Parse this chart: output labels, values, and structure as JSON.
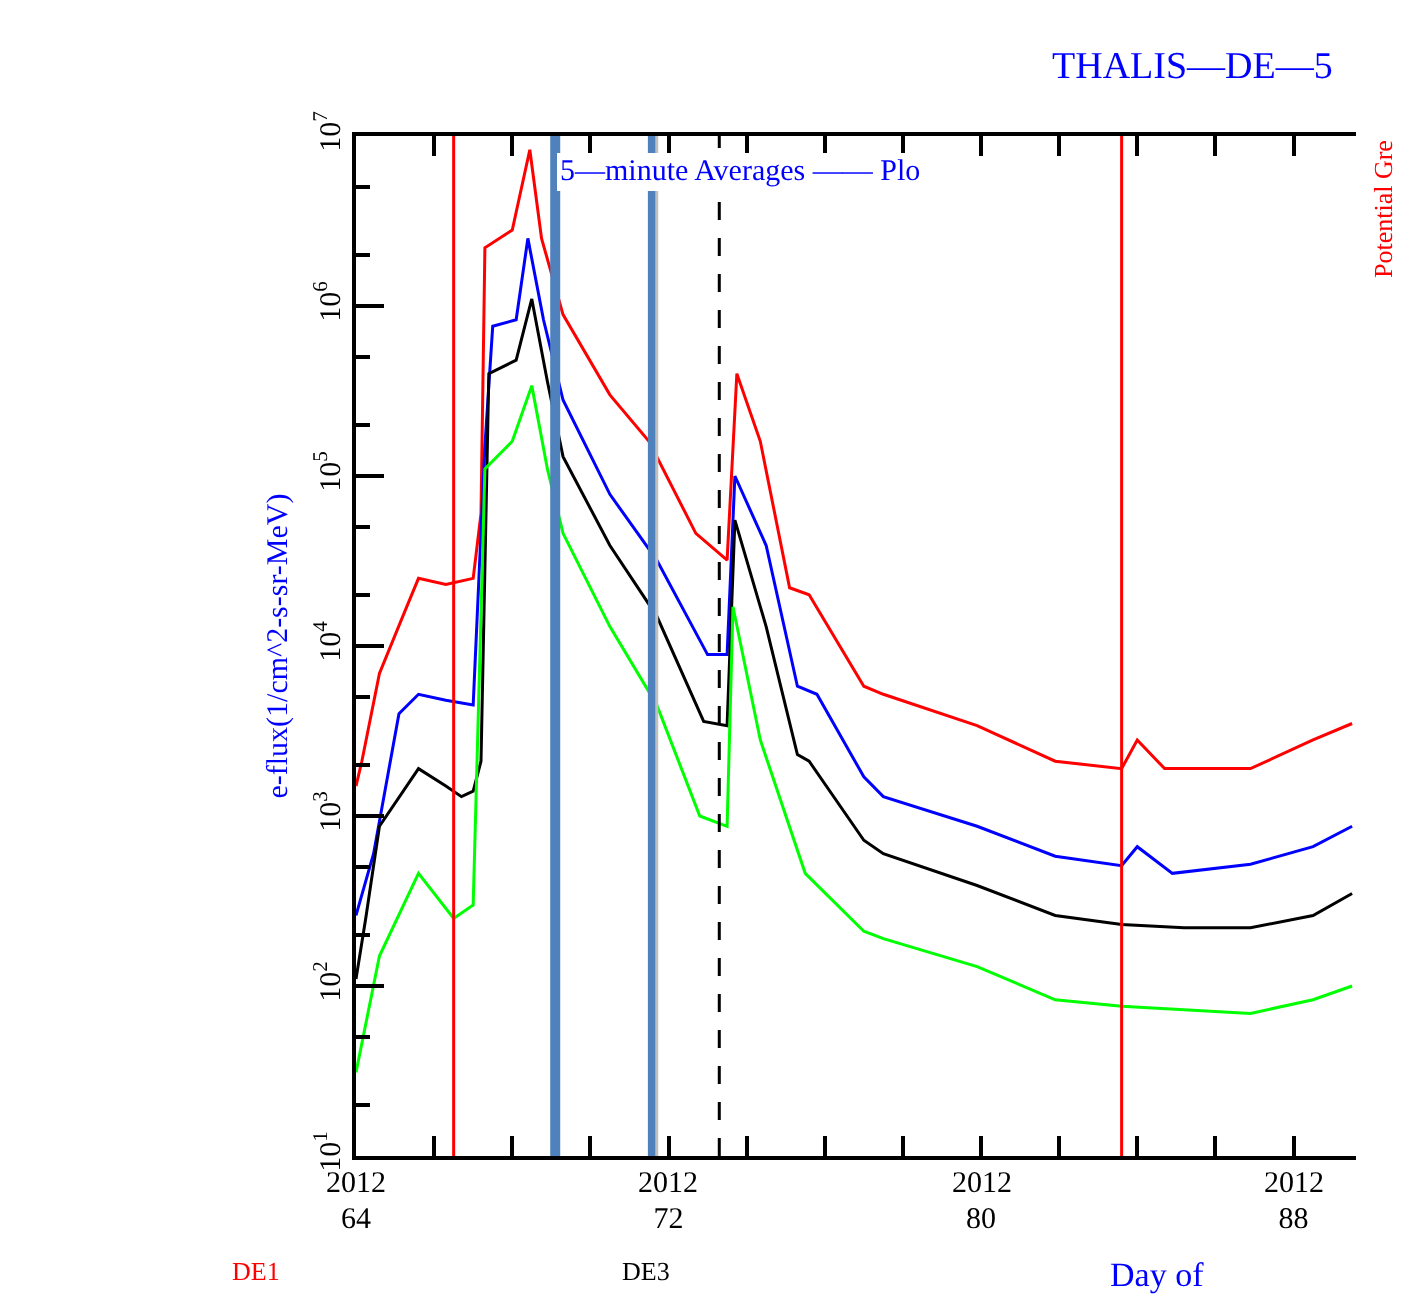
{
  "chart_data": {
    "type": "line",
    "title": "THALIS—DE—5",
    "subtitle": "5—minute Averages —— Plo",
    "xlabel": "Day of",
    "ylabel": "e-flux(1/cm^2-s-sr-MeV)",
    "annotations": [
      "DE1",
      "DE3",
      "Potential Gre",
      "2012",
      "2012",
      "2012",
      "2012"
    ],
    "log": "y",
    "marker": "none",
    "line_style": "solid",
    "xlim": [
      64,
      89.6
    ],
    "xticks": [
      64,
      {
        "value": 66,
        "label": null
      },
      {
        "value": 68,
        "label": null
      },
      {
        "value": 70,
        "label": null
      },
      72,
      {
        "value": 74,
        "label": null
      },
      {
        "value": 76,
        "label": null
      },
      {
        "value": 78,
        "label": null
      },
      80,
      {
        "value": 82,
        "label": null
      },
      {
        "value": 84,
        "label": null
      },
      {
        "value": 86,
        "label": null
      },
      88
    ],
    "ylim": [
      10,
      10000000
    ],
    "yticks": [
      {
        "value": 10,
        "label": "10$^{1}$"
      },
      {
        "value": 100,
        "label": "10$^{2}$"
      },
      {
        "value": 1000,
        "label": "10$^{3}$"
      },
      {
        "value": 10000,
        "label": "10$^{4}$"
      },
      {
        "value": 100000,
        "label": "10$^{5}$"
      },
      {
        "value": 1000000,
        "label": "10$^{6}$"
      },
      {
        "value": 10000000,
        "label": "10$^{7}$"
      }
    ],
    "ref_lines": [
      {
        "axis": "x",
        "value": 66.5,
        "color": "#ff0000",
        "line_style": "solid"
      },
      {
        "axis": "x",
        "value": 69.1,
        "color": "#4f81bd",
        "line_style": "solid"
      },
      {
        "axis": "x",
        "value": 71.6,
        "color": "#4f81bd",
        "line_style": "solid"
      },
      {
        "axis": "x",
        "value": 71.7,
        "color": "#c0c0c0",
        "line_style": "solid"
      },
      {
        "axis": "x",
        "value": 73.3,
        "color": "#000000",
        "line_style": "dashed"
      },
      {
        "axis": "x",
        "value": 83.6,
        "color": "#ff0000",
        "line_style": "solid"
      }
    ],
    "series": [
      {
        "color": "#ff0000",
        "x": [
          64.0,
          64.15,
          64.6,
          65.2,
          65.6,
          66.3,
          67.0,
          67.2,
          67.3,
          68.0,
          68.45,
          68.75,
          69.3,
          70.5,
          71.5,
          72.7,
          73.5,
          73.75,
          74.35,
          75.1,
          75.6,
          77.0,
          77.5,
          79.9,
          81.9,
          83.6,
          84.0,
          84.7,
          86.9,
          88.5,
          89.5
        ],
        "values": [
          1500,
          2100,
          6900,
          15000,
          25000,
          23000,
          25000,
          60000,
          2200000,
          2800000,
          8300000,
          2500000,
          890000,
          300000,
          160000,
          46000,
          32000,
          400000,
          160000,
          22000,
          20000,
          5800,
          5200,
          3400,
          2100,
          1900,
          2800,
          1900,
          1900,
          2800,
          3500
        ]
      },
      {
        "color": "#0000ff",
        "x": [
          64.0,
          64.45,
          65.1,
          65.6,
          66.3,
          67.0,
          67.3,
          67.5,
          68.1,
          68.4,
          68.8,
          69.3,
          70.5,
          71.7,
          73.0,
          73.5,
          73.7,
          74.5,
          75.3,
          75.8,
          77.0,
          77.5,
          79.9,
          81.9,
          83.6,
          84.0,
          84.9,
          86.9,
          88.5,
          89.5
        ],
        "values": [
          260,
          600,
          4000,
          5200,
          4800,
          4500,
          150000,
          760000,
          830000,
          2500000,
          830000,
          280000,
          78000,
          32000,
          8900,
          8900,
          100000,
          39000,
          5800,
          5200,
          1700,
          1300,
          870,
          580,
          510,
          660,
          460,
          520,
          660,
          870
        ]
      },
      {
        "color": "#000000",
        "x": [
          64.0,
          64.25,
          64.6,
          65.6,
          66.3,
          66.7,
          67.0,
          67.2,
          67.4,
          68.1,
          68.5,
          68.9,
          69.3,
          70.5,
          71.7,
          72.9,
          73.5,
          73.7,
          74.5,
          75.3,
          75.6,
          77.0,
          77.5,
          79.9,
          81.9,
          83.6,
          85.2,
          86.9,
          88.5,
          89.5
        ],
        "values": [
          110,
          250,
          870,
          1900,
          1500,
          1300,
          1400,
          2100,
          400000,
          480000,
          1100000,
          360000,
          130000,
          39000,
          15000,
          3600,
          3400,
          55000,
          13000,
          2300,
          2100,
          720,
          600,
          390,
          260,
          230,
          220,
          220,
          260,
          350
        ]
      },
      {
        "color": "#00ff00",
        "x": [
          64.0,
          64.6,
          65.6,
          66.5,
          67.0,
          67.3,
          68.0,
          68.5,
          68.9,
          69.3,
          70.5,
          71.7,
          72.8,
          73.5,
          73.65,
          74.35,
          75.5,
          77.0,
          77.5,
          79.9,
          81.9,
          83.6,
          86.9,
          88.5,
          89.5
        ],
        "values": [
          31,
          150,
          460,
          250,
          300,
          110000,
          160000,
          340000,
          110000,
          46000,
          13000,
          4500,
          1000,
          870,
          17000,
          2800,
          460,
          210,
          190,
          130,
          83,
          76,
          69,
          83,
          100
        ]
      }
    ]
  }
}
